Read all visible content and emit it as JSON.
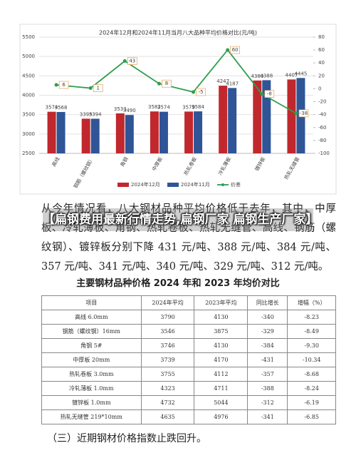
{
  "chart_data": {
    "type": "bar",
    "title": "2024年12月和2024年11月当月八大品种平均价格对比(元/吨)",
    "categories": [
      "高线",
      "钢筋（螺纹钢）",
      "角钢",
      "中厚板",
      "热轧卷板",
      "冷轧薄板",
      "镀锌板",
      "热轧无缝管"
    ],
    "series": [
      {
        "name": "2024年12月",
        "color": "#c0282d",
        "values": [
          3574,
          3395,
          3533,
          3582,
          3579,
          4247,
          4380,
          4407
        ]
      },
      {
        "name": "2024年11月",
        "color": "#2f5597",
        "values": [
          3568,
          3394,
          3490,
          3574,
          3584,
          4187,
          4388,
          4445
        ]
      },
      {
        "name": "价差",
        "color": "#2e9e4f",
        "type": "line",
        "axis": "y2",
        "values": [
          6,
          1,
          43,
          8,
          -5,
          60,
          -8,
          -38
        ]
      }
    ],
    "ylim": [
      2500,
      5500
    ],
    "yticks": [
      2500,
      3000,
      3500,
      4000,
      4500,
      5000,
      5500
    ],
    "y2lim": [
      -100,
      80
    ],
    "y2ticks": [
      -100,
      -80,
      -60,
      -40,
      -20,
      0,
      20,
      40,
      60,
      80
    ],
    "grid": true,
    "legend": "bottom"
  },
  "document": {
    "overlay_title": "【扁钢费用最新行情走势,扁钢厂家 扁钢生产厂家】",
    "paragraph": "从今年情况看，八大钢材品种平均价格低于去年，其中，中厚板、冷轧薄板、角钢、热轧卷板、热轧无缝管、高线、钢筋（螺纹钢）、镀锌板分别下降 431 元/吨、388 元/吨、384 元/吨、357 元/吨、341 元/吨、340 元/吨、329 元/吨、312 元/吨。",
    "table_title": "主要钢材品种价格 2024 年和 2023 年均价对比",
    "table": {
      "header": [
        "项目",
        "2024年平均",
        "2023年平均",
        "同比增长",
        "增幅（%）"
      ],
      "rows": [
        [
          "高线 6.0mm",
          "3790",
          "4130",
          "-340",
          "-8.23"
        ],
        [
          "钢筋（螺纹钢）16mm",
          "3546",
          "3875",
          "-329",
          "-8.49"
        ],
        [
          "角钢 5#",
          "3746",
          "4130",
          "-384",
          "-9.30"
        ],
        [
          "中厚板 20mm",
          "3739",
          "4170",
          "-431",
          "-10.34"
        ],
        [
          "热轧卷板 3.0mm",
          "3755",
          "4112",
          "-357",
          "-8.68"
        ],
        [
          "冷轧薄板 1.0mm",
          "4323",
          "4711",
          "-388",
          "-8.24"
        ],
        [
          "镀锌板 1.0mm",
          "4732",
          "5044",
          "-312",
          "-6.19"
        ],
        [
          "热轧无缝管 219*10mm",
          "4635",
          "4976",
          "-341",
          "-6.85"
        ]
      ]
    },
    "footer": "（三）近期钢材价格指数止跌回升。"
  }
}
